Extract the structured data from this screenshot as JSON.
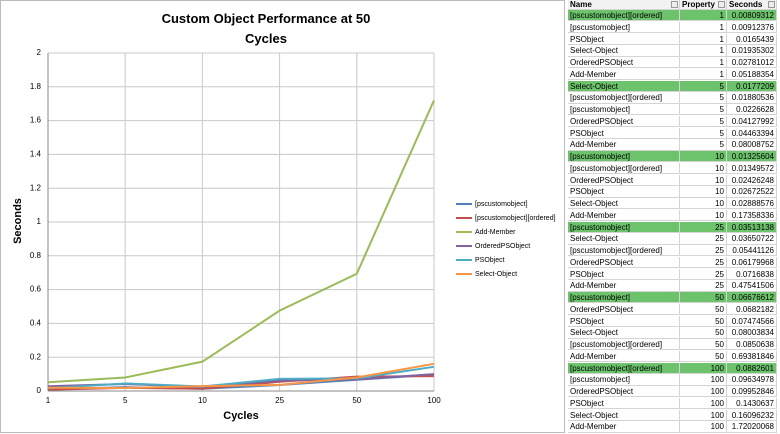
{
  "chart_data": {
    "type": "line",
    "title": "Custom Object Performance at 50 Cycles",
    "x_label": "Cycles",
    "y_label": "Seconds",
    "categories": [
      "1",
      "5",
      "10",
      "25",
      "50",
      "100"
    ],
    "ylim": [
      0,
      2
    ],
    "yticks": [
      0,
      0.2,
      0.4,
      0.6,
      0.8,
      1,
      1.2,
      1.4,
      1.6,
      1.8,
      2
    ],
    "grid": true,
    "legend": "right",
    "series": [
      {
        "name": "[pscustomobject]",
        "color": "#4f81bd",
        "values": [
          0.00912376,
          0.0226628,
          0.01325604,
          0.03513138,
          0.06676612,
          0.09634978
        ]
      },
      {
        "name": "[pscustomobject][ordered]",
        "color": "#c0504d",
        "values": [
          0.00809312,
          0.01880536,
          0.01349572,
          0.05441126,
          0.0850638,
          0.0882601
        ]
      },
      {
        "name": "Add-Member",
        "color": "#9bbb59",
        "values": [
          0.05188354,
          0.08008752,
          0.17358336,
          0.47541506,
          0.69381846,
          1.72020068
        ]
      },
      {
        "name": "OrderedPSObject",
        "color": "#8064a2",
        "values": [
          0.02781012,
          0.04127992,
          0.02426248,
          0.06179968,
          0.0682182,
          0.09952846
        ]
      },
      {
        "name": "PSObject",
        "color": "#4bacc6",
        "values": [
          0.0165439,
          0.04463394,
          0.02672522,
          0.0716838,
          0.07474566,
          0.1430637
        ]
      },
      {
        "name": "Select-Object",
        "color": "#f79646",
        "values": [
          0.01935302,
          0.0177209,
          0.02888576,
          0.03650722,
          0.08003834,
          0.16096232
        ]
      }
    ]
  },
  "table": {
    "columns": [
      "Name",
      "Property",
      "Seconds"
    ],
    "rows": [
      [
        "[pscustomobject][ordered]",
        1,
        0.00809312
      ],
      [
        "[pscustomobject]",
        1,
        0.00912376
      ],
      [
        "PSObject",
        1,
        0.0165439
      ],
      [
        "Select-Object",
        1,
        0.01935302
      ],
      [
        "OrderedPSObject",
        1,
        0.02781012
      ],
      [
        "Add-Member",
        1,
        0.05188354
      ],
      [
        "Select-Object",
        5,
        0.0177209
      ],
      [
        "[pscustomobject][ordered]",
        5,
        0.01880536
      ],
      [
        "[pscustomobject]",
        5,
        0.0226628
      ],
      [
        "OrderedPSObject",
        5,
        0.04127992
      ],
      [
        "PSObject",
        5,
        0.04463394
      ],
      [
        "Add-Member",
        5,
        0.08008752
      ],
      [
        "[pscustomobject]",
        10,
        0.01325604
      ],
      [
        "[pscustomobject][ordered]",
        10,
        0.01349572
      ],
      [
        "OrderedPSObject",
        10,
        0.02426248
      ],
      [
        "PSObject",
        10,
        0.02672522
      ],
      [
        "Select-Object",
        10,
        0.02888576
      ],
      [
        "Add-Member",
        10,
        0.17358336
      ],
      [
        "[pscustomobject]",
        25,
        0.03513138
      ],
      [
        "Select-Object",
        25,
        0.03650722
      ],
      [
        "[pscustomobject][ordered]",
        25,
        0.05441126
      ],
      [
        "OrderedPSObject",
        25,
        0.06179968
      ],
      [
        "PSObject",
        25,
        0.0716838
      ],
      [
        "Add-Member",
        25,
        0.47541506
      ],
      [
        "[pscustomobject]",
        50,
        0.06676612
      ],
      [
        "OrderedPSObject",
        50,
        0.0682182
      ],
      [
        "PSObject",
        50,
        0.07474566
      ],
      [
        "Select-Object",
        50,
        0.08003834
      ],
      [
        "[pscustomobject][ordered]",
        50,
        0.0850638
      ],
      [
        "Add-Member",
        50,
        0.69381846
      ],
      [
        "[pscustomobject][ordered]",
        100,
        0.0882601
      ],
      [
        "[pscustomobject]",
        100,
        0.09634978
      ],
      [
        "OrderedPSObject",
        100,
        0.09952846
      ],
      [
        "PSObject",
        100,
        0.1430637
      ],
      [
        "Select-Object",
        100,
        0.16096232
      ],
      [
        "Add-Member",
        100,
        1.72020068
      ]
    ]
  }
}
